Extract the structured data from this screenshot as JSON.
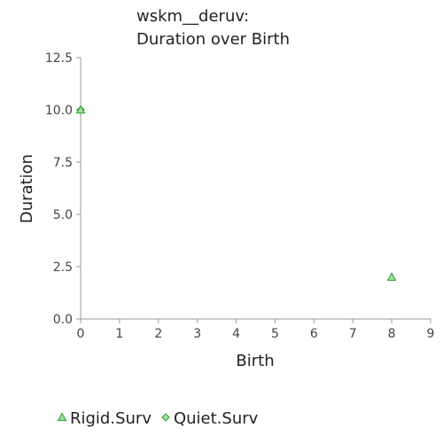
{
  "chart_data": {
    "type": "scatter",
    "title_lines": [
      "wskm__deruv:",
      "Duration over Birth"
    ],
    "xlabel": "Birth",
    "ylabel": "Duration",
    "xlim": [
      0,
      9
    ],
    "ylim": [
      0,
      12.5
    ],
    "x_ticks": [
      0,
      1,
      2,
      3,
      4,
      5,
      6,
      7,
      8,
      9
    ],
    "y_ticks": [
      0,
      2.5,
      5,
      7.5,
      10,
      12.5
    ],
    "y_tick_labels": [
      "0.0",
      "2.5",
      "5.0",
      "7.5",
      "10.0",
      "12.5"
    ],
    "grid": false,
    "legend_position": "bottom",
    "series": [
      {
        "name": "Rigid.Surv",
        "marker": "triangle",
        "color": "#2ca02c",
        "fill": "#a6dba0",
        "points": [
          {
            "x": 0,
            "y": 10
          },
          {
            "x": 8,
            "y": 2
          }
        ]
      },
      {
        "name": "Quiet.Surv",
        "marker": "diamond",
        "color": "#2ca02c",
        "fill": "#a6dba0",
        "points": [
          {
            "x": 0,
            "y": 10
          }
        ]
      }
    ]
  }
}
